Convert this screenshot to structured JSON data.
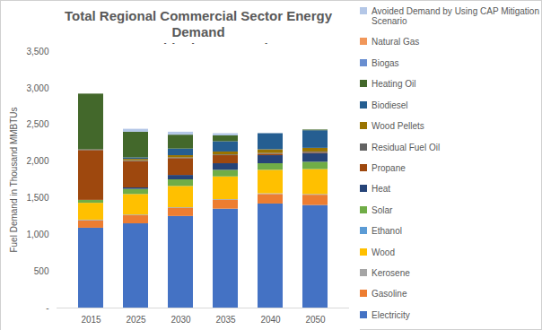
{
  "chart_data": {
    "type": "bar",
    "title": "Total Regional Commercial Sector Energy Demand",
    "subtitle": "CAP Mitigaiton Scenario",
    "y_label": "Fuel Demand in Thousand MMBTUs",
    "stacked": true,
    "grid": false,
    "legend": "right",
    "categories": [
      "2015",
      "2025",
      "2030",
      "2035",
      "2040",
      "2050"
    ],
    "ylim": [
      0,
      3500
    ],
    "yticks": [
      {
        "value": 0,
        "label": "-"
      },
      {
        "value": 500,
        "label": "500"
      },
      {
        "value": 1000,
        "label": "1,000"
      },
      {
        "value": 1500,
        "label": "1,500"
      },
      {
        "value": 2000,
        "label": "2,000"
      },
      {
        "value": 2500,
        "label": "2,500"
      },
      {
        "value": 3000,
        "label": "3,000"
      },
      {
        "value": 3500,
        "label": "3,500"
      }
    ],
    "series": [
      {
        "name": "Electricity",
        "color": "#4472c4",
        "values": [
          1090,
          1150,
          1250,
          1350,
          1420,
          1400
        ]
      },
      {
        "name": "Gasoline",
        "color": "#ed7d31",
        "values": [
          100,
          110,
          110,
          120,
          130,
          140
        ]
      },
      {
        "name": "Kerosene",
        "color": "#a5a5a5",
        "values": [
          10,
          10,
          10,
          10,
          10,
          10
        ]
      },
      {
        "name": "Wood",
        "color": "#ffc000",
        "values": [
          230,
          280,
          290,
          310,
          320,
          340
        ]
      },
      {
        "name": "Ethanol",
        "color": "#5b9bd5",
        "values": [
          0,
          0,
          0,
          0,
          0,
          0
        ]
      },
      {
        "name": "Solar",
        "color": "#70ad47",
        "values": [
          40,
          70,
          90,
          90,
          90,
          100
        ]
      },
      {
        "name": "Heat",
        "color": "#264478",
        "values": [
          0,
          20,
          60,
          90,
          110,
          120
        ]
      },
      {
        "name": "Propane",
        "color": "#9e480e",
        "values": [
          680,
          360,
          230,
          110,
          20,
          10
        ]
      },
      {
        "name": "Residual Fuel Oil",
        "color": "#636363",
        "values": [
          10,
          10,
          10,
          10,
          10,
          10
        ]
      },
      {
        "name": "Wood Pellets",
        "color": "#997300",
        "values": [
          0,
          20,
          30,
          40,
          50,
          50
        ]
      },
      {
        "name": "Biodiesel",
        "color": "#255e91",
        "values": [
          0,
          20,
          90,
          140,
          220,
          240
        ]
      },
      {
        "name": "Heating Oil",
        "color": "#43682b",
        "values": [
          760,
          350,
          190,
          80,
          0,
          10
        ]
      },
      {
        "name": "Biogas",
        "color": "#698ed0",
        "values": [
          0,
          0,
          0,
          0,
          0,
          0
        ]
      },
      {
        "name": "Natural Gas",
        "color": "#f1975a",
        "values": [
          0,
          0,
          0,
          0,
          0,
          0
        ]
      },
      {
        "name": "Avoided Demand by Using CAP Mitigation Scenario",
        "color": "#b4c7e7",
        "values": [
          0,
          40,
          40,
          30,
          0,
          0
        ]
      }
    ]
  }
}
